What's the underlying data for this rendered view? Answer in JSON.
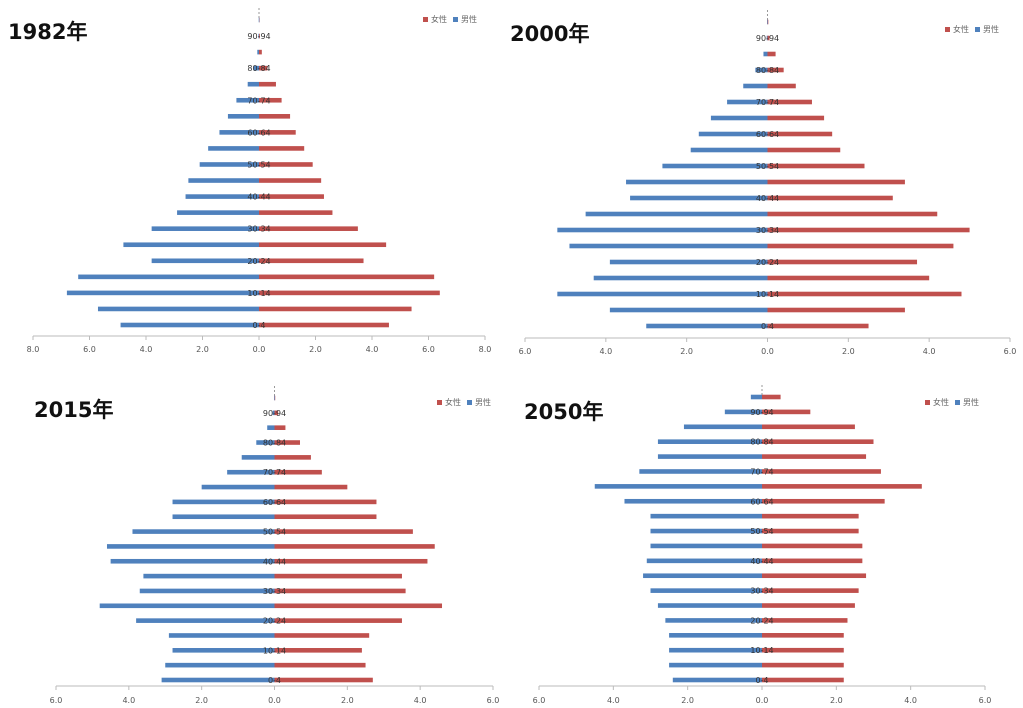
{
  "colors": {
    "female": "#c0504d",
    "male": "#4f81bd"
  },
  "chart_data": [
    {
      "type": "bar",
      "title": "1982年",
      "xlim": [
        -8,
        8
      ],
      "x_ticks": [
        "8.0",
        "6.0",
        "4.0",
        "2.0",
        "0.0",
        "2.0",
        "4.0",
        "6.0",
        "8.0"
      ],
      "category_labels": [
        "0-4",
        "",
        "10-14",
        "",
        "20-24",
        "",
        "30-34",
        "",
        "40-44",
        "",
        "50-54",
        "",
        "60-64",
        "",
        "70-74",
        "",
        "80-84",
        "",
        "90-94",
        ""
      ],
      "series": [
        {
          "name": "女性",
          "values": [
            4.6,
            5.4,
            6.4,
            6.2,
            3.7,
            4.5,
            3.5,
            2.6,
            2.3,
            2.2,
            1.9,
            1.6,
            1.3,
            1.1,
            0.8,
            0.6,
            0.3,
            0.1,
            0.03,
            0.01
          ]
        },
        {
          "name": "男性",
          "values": [
            4.9,
            5.7,
            6.8,
            6.4,
            3.8,
            4.8,
            3.8,
            2.9,
            2.6,
            2.5,
            2.1,
            1.8,
            1.4,
            1.1,
            0.8,
            0.4,
            0.2,
            0.06,
            0.02,
            0.01
          ]
        }
      ]
    },
    {
      "type": "bar",
      "title": "2000年",
      "xlim": [
        -6,
        6
      ],
      "x_ticks": [
        "6.0",
        "4.0",
        "2.0",
        "0.0",
        "2.0",
        "4.0",
        "6.0"
      ],
      "category_labels": [
        "0-4",
        "",
        "10-14",
        "",
        "20-24",
        "",
        "30-34",
        "",
        "40-44",
        "",
        "50-54",
        "",
        "60-64",
        "",
        "70-74",
        "",
        "80-84",
        "",
        "90-94",
        ""
      ],
      "series": [
        {
          "name": "女性",
          "values": [
            2.5,
            3.4,
            4.8,
            4.0,
            3.7,
            4.6,
            5.0,
            4.2,
            3.1,
            3.4,
            2.4,
            1.8,
            1.6,
            1.4,
            1.1,
            0.7,
            0.4,
            0.2,
            0.05,
            0.02
          ]
        },
        {
          "name": "男性",
          "values": [
            3.0,
            3.9,
            5.2,
            4.3,
            3.9,
            4.9,
            5.2,
            4.5,
            3.4,
            3.5,
            2.6,
            1.9,
            1.7,
            1.4,
            1.0,
            0.6,
            0.3,
            0.1,
            0.02,
            0.01
          ]
        }
      ]
    },
    {
      "type": "bar",
      "title": "2015年",
      "xlim": [
        -6,
        6
      ],
      "x_ticks": [
        "6.0",
        "4.0",
        "2.0",
        "0.0",
        "2.0",
        "4.0",
        "6.0"
      ],
      "category_labels": [
        "0-4",
        "",
        "10-14",
        "",
        "20-24",
        "",
        "30-34",
        "",
        "40-44",
        "",
        "50-54",
        "",
        "60-64",
        "",
        "70-74",
        "",
        "80-84",
        "",
        "90-94",
        ""
      ],
      "series": [
        {
          "name": "女性",
          "values": [
            2.7,
            2.5,
            2.4,
            2.6,
            3.5,
            4.6,
            3.6,
            3.5,
            4.2,
            4.4,
            3.8,
            2.8,
            2.8,
            2.0,
            1.3,
            1.0,
            0.7,
            0.3,
            0.1,
            0.02
          ]
        },
        {
          "name": "男性",
          "values": [
            3.1,
            3.0,
            2.8,
            2.9,
            3.8,
            4.8,
            3.7,
            3.6,
            4.5,
            4.6,
            3.9,
            2.8,
            2.8,
            2.0,
            1.3,
            0.9,
            0.5,
            0.2,
            0.05,
            0.01
          ]
        }
      ]
    },
    {
      "type": "bar",
      "title": "2050年",
      "xlim": [
        -6,
        6
      ],
      "x_ticks": [
        "6.0",
        "4.0",
        "2.0",
        "0.0",
        "2.0",
        "4.0",
        "6.0"
      ],
      "category_labels": [
        "0-4",
        "",
        "10-14",
        "",
        "20-24",
        "",
        "30-34",
        "",
        "40-44",
        "",
        "50-54",
        "",
        "60-64",
        "",
        "70-74",
        "",
        "80-84",
        "",
        "90-94",
        ""
      ],
      "series": [
        {
          "name": "女性",
          "values": [
            2.2,
            2.2,
            2.2,
            2.2,
            2.3,
            2.5,
            2.6,
            2.8,
            2.7,
            2.7,
            2.6,
            2.6,
            3.3,
            4.3,
            3.2,
            2.8,
            3.0,
            2.5,
            1.3,
            0.5
          ]
        },
        {
          "name": "男性",
          "values": [
            2.4,
            2.5,
            2.5,
            2.5,
            2.6,
            2.8,
            3.0,
            3.2,
            3.1,
            3.0,
            3.0,
            3.0,
            3.7,
            4.5,
            3.3,
            2.8,
            2.8,
            2.1,
            1.0,
            0.3
          ]
        }
      ]
    }
  ],
  "legend": {
    "female_label": "女性",
    "male_label": "男性"
  }
}
